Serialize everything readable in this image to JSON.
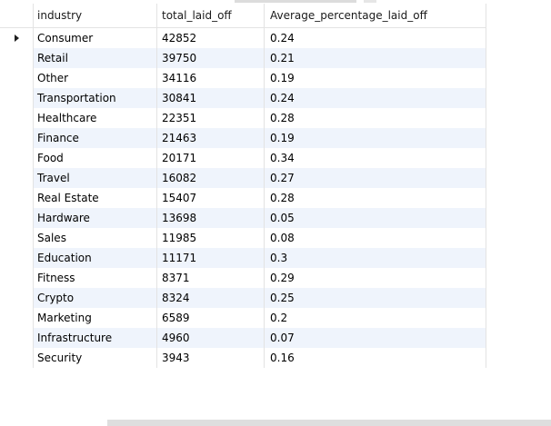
{
  "columns": {
    "industry": "industry",
    "total_laid_off": "total_laid_off",
    "average_percentage": "Average_percentage_laid_off"
  },
  "rows": [
    {
      "industry": "Consumer",
      "total": "42852",
      "avg": "0.24"
    },
    {
      "industry": "Retail",
      "total": "39750",
      "avg": "0.21"
    },
    {
      "industry": "Other",
      "total": "34116",
      "avg": "0.19"
    },
    {
      "industry": "Transportation",
      "total": "30841",
      "avg": "0.24"
    },
    {
      "industry": "Healthcare",
      "total": "22351",
      "avg": "0.28"
    },
    {
      "industry": "Finance",
      "total": "21463",
      "avg": "0.19"
    },
    {
      "industry": "Food",
      "total": "20171",
      "avg": "0.34"
    },
    {
      "industry": "Travel",
      "total": "16082",
      "avg": "0.27"
    },
    {
      "industry": "Real Estate",
      "total": "15407",
      "avg": "0.28"
    },
    {
      "industry": "Hardware",
      "total": "13698",
      "avg": "0.05"
    },
    {
      "industry": "Sales",
      "total": "11985",
      "avg": "0.08"
    },
    {
      "industry": "Education",
      "total": "11171",
      "avg": "0.3"
    },
    {
      "industry": "Fitness",
      "total": "8371",
      "avg": "0.29"
    },
    {
      "industry": "Crypto",
      "total": "8324",
      "avg": "0.25"
    },
    {
      "industry": "Marketing",
      "total": "6589",
      "avg": "0.2"
    },
    {
      "industry": "Infrastructure",
      "total": "4960",
      "avg": "0.07"
    },
    {
      "industry": "Security",
      "total": "3943",
      "avg": "0.16"
    }
  ],
  "current_row_icon": "row-pointer-icon",
  "colors": {
    "alt_row": "#eff4fc",
    "grid_line": "#e3e3e3",
    "scrollbar": "#dedede"
  }
}
